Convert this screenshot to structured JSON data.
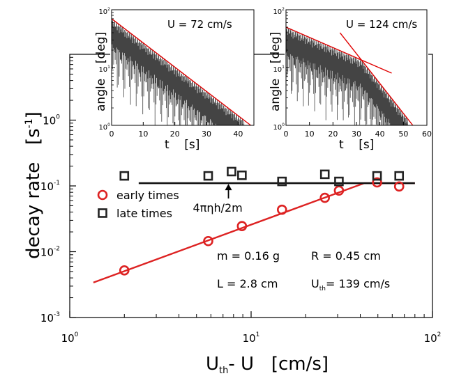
{
  "chart_data": [
    {
      "type": "scatter",
      "xlabel_main": "U",
      "xlabel_sub": "th",
      "xlabel_rest": "- U   [cm/s]",
      "ylabel_main": "decay rate   [s",
      "ylabel_sup": "-1",
      "ylabel_end": "]",
      "xscale": "log",
      "yscale": "log",
      "xlim": [
        1,
        100
      ],
      "ylim": [
        0.001,
        10
      ],
      "x_ticks": [
        {
          "base": "10",
          "exp": "0",
          "value": 1
        },
        {
          "base": "10",
          "exp": "1",
          "value": 10
        },
        {
          "base": "10",
          "exp": "2",
          "value": 100
        }
      ],
      "y_ticks": [
        {
          "base": "10",
          "exp": "-3",
          "value": 0.001
        },
        {
          "base": "10",
          "exp": "-2",
          "value": 0.01
        },
        {
          "base": "10",
          "exp": "-1",
          "value": 0.1
        },
        {
          "base": "10",
          "exp": "0",
          "value": 1
        }
      ],
      "series": [
        {
          "name": "early times",
          "marker": "circle",
          "color": "#dd2222",
          "x": [
            2.0,
            5.8,
            8.9,
            14.8,
            25.5,
            30.5,
            49.5,
            65.5
          ],
          "y": [
            0.0052,
            0.0145,
            0.0245,
            0.0435,
            0.066,
            0.085,
            0.113,
            0.098
          ]
        },
        {
          "name": "late times",
          "marker": "square",
          "color": "#222222",
          "x": [
            2.0,
            5.8,
            7.8,
            8.9,
            14.8,
            25.5,
            30.5,
            49.5,
            65.5
          ],
          "y": [
            0.142,
            0.142,
            0.165,
            0.145,
            0.117,
            0.15,
            0.117,
            0.142,
            0.142
          ]
        }
      ],
      "fit_lines": [
        {
          "color": "#dd2222",
          "x": [
            1.35,
            42,
            80
          ],
          "y": [
            0.0034,
            0.11,
            0.11
          ]
        },
        {
          "color": "#111111",
          "x": [
            2.4,
            80
          ],
          "y": [
            0.11,
            0.11
          ]
        }
      ],
      "annotation": {
        "text": "4πηh/2m",
        "x": 7.5,
        "y": 0.11
      },
      "params": {
        "m": "m = 0.16 g",
        "r": "R = 0.45 cm",
        "l": "L = 2.8 cm",
        "u_main": "U",
        "u_sub": "th",
        "u_rest": "= 139 cm/s"
      }
    },
    {
      "type": "line",
      "title": "U = 72 cm/s",
      "xlabel": "t    [s]",
      "ylabel": "angle    [deg]",
      "xlim": [
        0,
        45
      ],
      "ylim": [
        1,
        100
      ],
      "yscale": "log",
      "x_ticks": [
        0,
        10,
        20,
        30,
        40
      ],
      "y_ticks": [
        {
          "base": "10",
          "exp": "0"
        },
        {
          "base": "10",
          "exp": "1"
        },
        {
          "base": "10",
          "exp": "2"
        }
      ],
      "envelope": {
        "x": [
          0,
          44
        ],
        "y": [
          70,
          1.0
        ]
      },
      "signal_end": 42
    },
    {
      "type": "line",
      "title": "U = 124 cm/s",
      "xlabel": "t    [s]",
      "ylabel": "angle    [deg]",
      "xlim": [
        0,
        60
      ],
      "ylim": [
        1,
        100
      ],
      "yscale": "log",
      "x_ticks": [
        0,
        10,
        20,
        30,
        40,
        50,
        60
      ],
      "y_ticks": [
        {
          "base": "10",
          "exp": "0"
        },
        {
          "base": "10",
          "exp": "1"
        },
        {
          "base": "10",
          "exp": "2"
        }
      ],
      "envelope_early": {
        "x": [
          0,
          45
        ],
        "y": [
          50,
          8
        ]
      },
      "envelope_late": {
        "x": [
          23,
          54
        ],
        "y": [
          40,
          1.0
        ]
      },
      "signal_end": 52
    }
  ]
}
